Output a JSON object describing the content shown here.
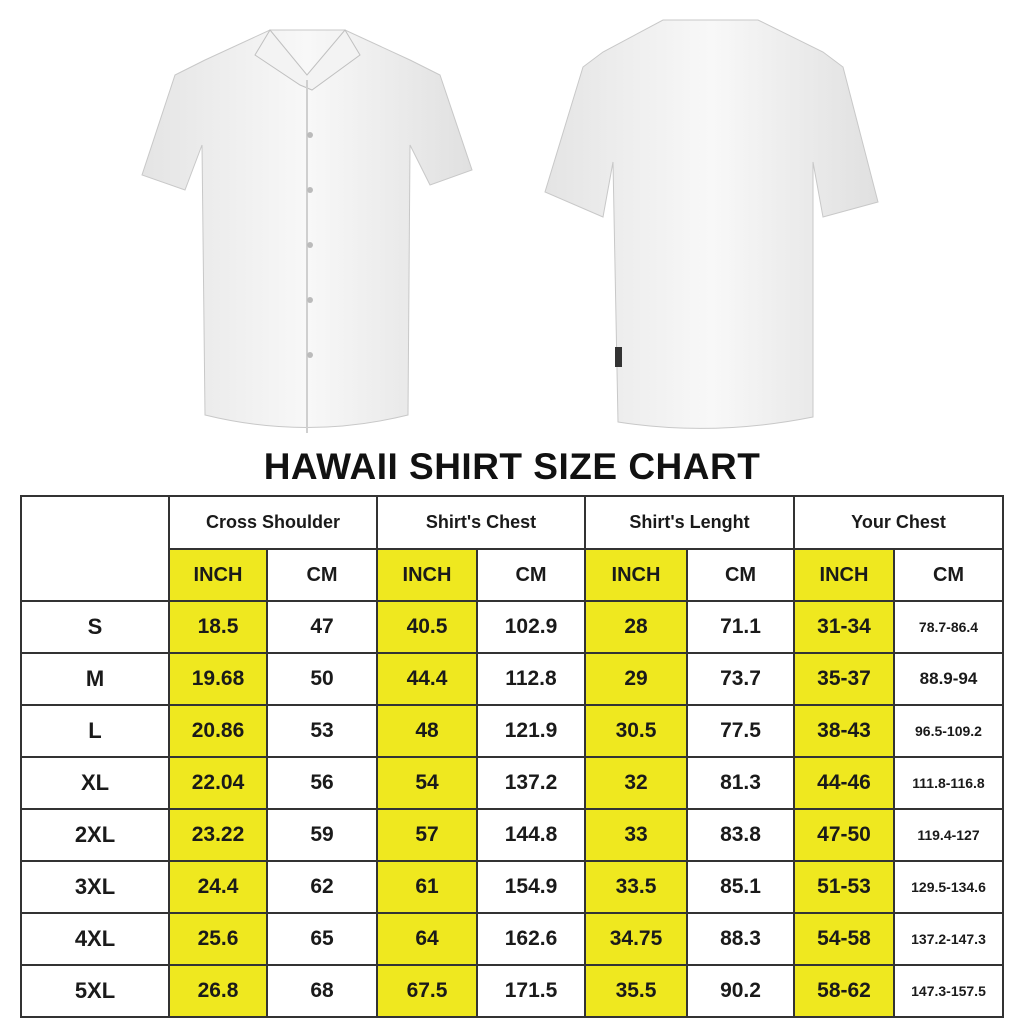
{
  "title": "HAWAII SHIRT SIZE CHART",
  "colors": {
    "inch_highlight": "#efe81f",
    "border": "#333333"
  },
  "groups": [
    "Cross Shoulder",
    "Shirt's Chest",
    "Shirt's Lenght",
    "Your Chest"
  ],
  "units": {
    "inch": "INCH",
    "cm": "CM"
  },
  "rows": [
    {
      "size": "S",
      "values": [
        "18.5",
        "47",
        "40.5",
        "102.9",
        "28",
        "71.1",
        "31-34",
        "78.7-86.4"
      ]
    },
    {
      "size": "M",
      "values": [
        "19.68",
        "50",
        "44.4",
        "112.8",
        "29",
        "73.7",
        "35-37",
        "88.9-94"
      ]
    },
    {
      "size": "L",
      "values": [
        "20.86",
        "53",
        "48",
        "121.9",
        "30.5",
        "77.5",
        "38-43",
        "96.5-109.2"
      ]
    },
    {
      "size": "XL",
      "values": [
        "22.04",
        "56",
        "54",
        "137.2",
        "32",
        "81.3",
        "44-46",
        "111.8-116.8"
      ]
    },
    {
      "size": "2XL",
      "values": [
        "23.22",
        "59",
        "57",
        "144.8",
        "33",
        "83.8",
        "47-50",
        "119.4-127"
      ]
    },
    {
      "size": "3XL",
      "values": [
        "24.4",
        "62",
        "61",
        "154.9",
        "33.5",
        "85.1",
        "51-53",
        "129.5-134.6"
      ]
    },
    {
      "size": "4XL",
      "values": [
        "25.6",
        "65",
        "64",
        "162.6",
        "34.75",
        "88.3",
        "54-58",
        "137.2-147.3"
      ]
    },
    {
      "size": "5XL",
      "values": [
        "26.8",
        "68",
        "67.5",
        "171.5",
        "35.5",
        "90.2",
        "58-62",
        "147.3-157.5"
      ]
    }
  ]
}
